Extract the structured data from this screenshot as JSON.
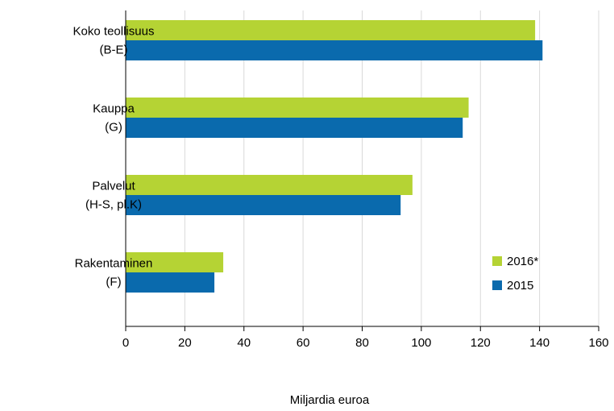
{
  "chart_data": {
    "type": "bar",
    "orientation": "horizontal",
    "categories": [
      [
        "Koko teollisuus",
        "(B-E)"
      ],
      [
        "Kauppa",
        "(G)"
      ],
      [
        "Palvelut",
        "(H-S, pl.K)"
      ],
      [
        "Rakentaminen",
        "(F)"
      ]
    ],
    "series": [
      {
        "name": "2016*",
        "color": "#b5d334",
        "values": [
          138.5,
          116,
          97,
          33
        ]
      },
      {
        "name": "2015",
        "color": "#0a6aad",
        "values": [
          141,
          114,
          93,
          30
        ]
      }
    ],
    "xlabel": "Miljardia euroa",
    "ylabel": "",
    "title": "",
    "xlim": [
      0,
      160
    ],
    "xticks": [
      0,
      20,
      40,
      60,
      80,
      100,
      120,
      140,
      160
    ],
    "grid": "vertical",
    "legend_position": "bottom-right"
  }
}
